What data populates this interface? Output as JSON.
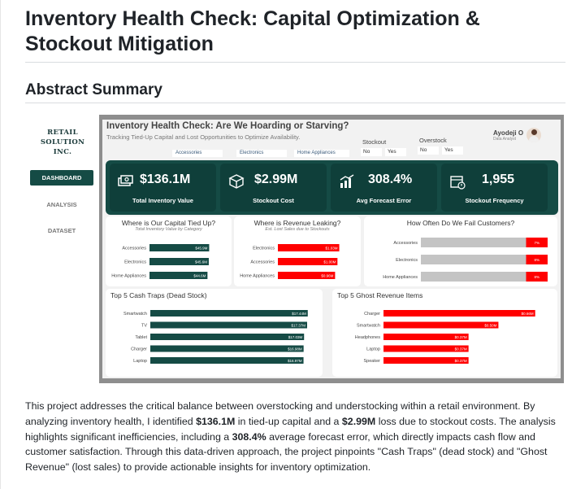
{
  "page": {
    "title": "Inventory Health Check: Capital Optimization & Stockout Mitigation",
    "section": "Abstract Summary",
    "paragraph": [
      {
        "t": "This project addresses the critical balance between overstocking and understocking within a retail environment. By analyzing inventory health, I identified ",
        "b": false
      },
      {
        "t": "$136.1M",
        "b": true
      },
      {
        "t": " in tied-up capital and a ",
        "b": false
      },
      {
        "t": "$2.99M",
        "b": true
      },
      {
        "t": " loss due to stockout costs. The analysis highlights significant inefficiencies, including a ",
        "b": false
      },
      {
        "t": "308.4%",
        "b": true
      },
      {
        "t": " average forecast error, which directly impacts cash flow and customer satisfaction. Through this data-driven approach, the project pinpoints \"Cash Traps\" (dead stock) and \"Ghost Revenue\" (lost sales) to provide actionable insights for inventory optimization.",
        "b": false
      }
    ]
  },
  "dashboard": {
    "brand": "RETAIL SOLUTION INC.",
    "nav": [
      {
        "label": "DASHBOARD",
        "active": true
      },
      {
        "label": "ANALYSIS",
        "active": false
      },
      {
        "label": "DATASET",
        "active": false
      }
    ],
    "title": "Inventory Health Check: Are We Hoarding or Starving?",
    "subtitle": "Tracking Tied-Up Capital and Lost Opportunities to Optimize Availability.",
    "categories_filter": [
      "Accessories",
      "Electronics",
      "Home Appliances"
    ],
    "stockout_filter": {
      "label": "Stockout",
      "options": [
        "No",
        "Yes"
      ]
    },
    "overstock_filter": {
      "label": "Overstock",
      "options": [
        "No",
        "Yes"
      ]
    },
    "user": {
      "name": "Ayodeji O",
      "role": "Data Analyst"
    },
    "kpis": [
      {
        "value": "$136.1M",
        "label": "Total Inventory Value",
        "icon": "money-stack-icon"
      },
      {
        "value": "$2.99M",
        "label": "Stockout Cost",
        "icon": "empty-box-icon"
      },
      {
        "value": "308.4%",
        "label": "Avg Forecast Error",
        "icon": "forecast-chart-icon"
      },
      {
        "value": "1,955",
        "label": "Stockout Frequency",
        "icon": "calendar-alert-icon"
      }
    ],
    "colors": {
      "teal": "#154b45",
      "red": "#ff0000",
      "gray_bar": "#c4c4c4"
    }
  },
  "chart_data": [
    {
      "type": "bar",
      "title": "Where is Our Capital Tied Up?",
      "subtitle": "Total Inventory Value by Category",
      "categories": [
        "Accessories",
        "Electronics",
        "Home Appliances"
      ],
      "values": [
        45.9,
        45.6,
        44.6
      ],
      "labels": [
        "$45.9M",
        "$45.6M",
        "$44.6M"
      ],
      "xlim": [
        0,
        50
      ],
      "color": "#154b45"
    },
    {
      "type": "bar",
      "title": "Where is Revenue Leaking?",
      "subtitle": "Est. Lost Sales due to Stockouts",
      "categories": [
        "Electronics",
        "Accessories",
        "Home Appliances"
      ],
      "values": [
        1.03,
        1.0,
        0.96
      ],
      "labels": [
        "$1.03M",
        "$1.00M",
        "$0.96M"
      ],
      "xlim": [
        0,
        1.2
      ],
      "color": "#ff0000"
    },
    {
      "type": "bar",
      "title": "How Often Do We Fail Customers?",
      "categories": [
        "Accessories",
        "Electronics",
        "Home Appliances"
      ],
      "values": [
        7,
        8,
        8
      ],
      "labels": [
        "7%",
        "8%",
        "8%"
      ],
      "xlim": [
        0,
        8.5
      ],
      "color": "#ff0000",
      "track_color": "#c4c4c4"
    },
    {
      "type": "bar",
      "title": "Top 5 Cash Traps (Dead Stock)",
      "categories": [
        "Smartwatch",
        "TV",
        "Tablet",
        "Charger",
        "Laptop"
      ],
      "values": [
        17.44,
        17.37,
        17.03,
        16.98,
        16.97
      ],
      "labels": [
        "$17.44M",
        "$17.37M",
        "$17.03M",
        "$16.98M",
        "$16.97M"
      ],
      "xlim": [
        0,
        18
      ],
      "color": "#154b45"
    },
    {
      "type": "bar",
      "title": "Top 5 Ghost Revenue Items",
      "categories": [
        "Charger",
        "Smartwatch",
        "Headphones",
        "Laptop",
        "Speaker"
      ],
      "values": [
        0.66,
        0.5,
        0.37,
        0.37,
        0.37
      ],
      "labels": [
        "$0.66M",
        "$0.50M",
        "$0.37M",
        "$0.37M",
        "$0.37M"
      ],
      "xlim": [
        0,
        0.7
      ],
      "color": "#ff0000"
    }
  ]
}
